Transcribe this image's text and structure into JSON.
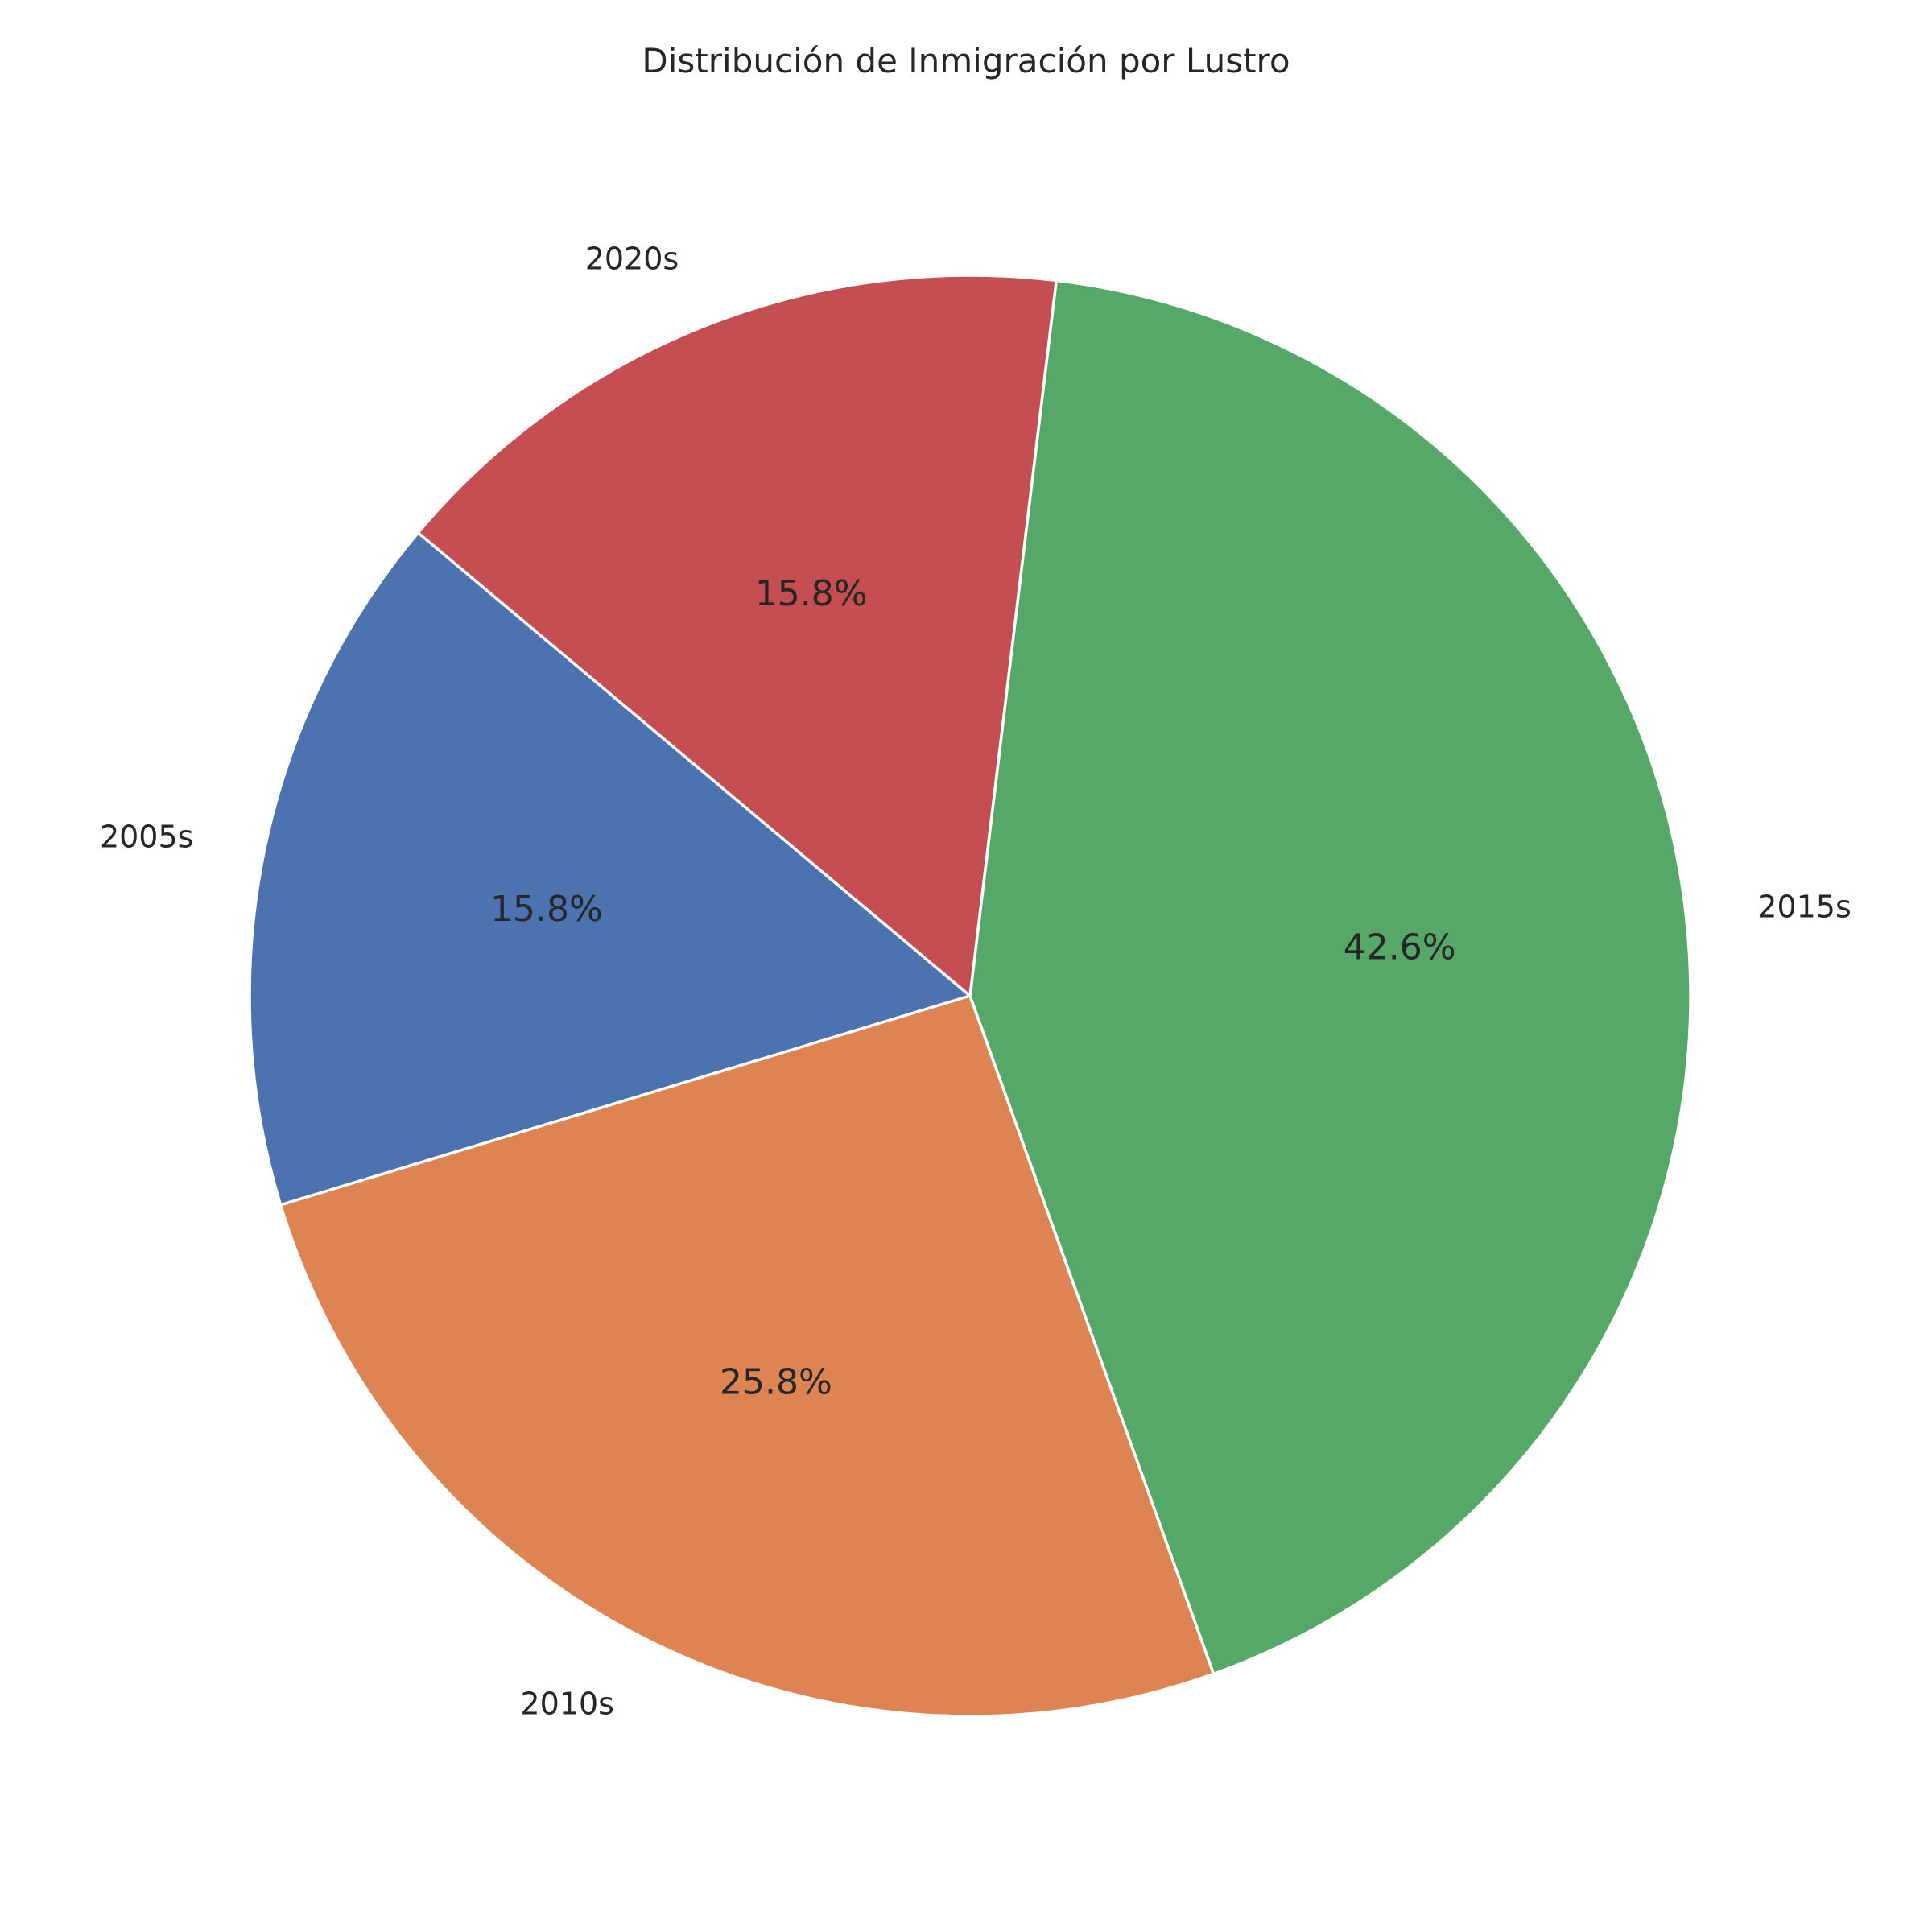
{
  "chart_data": {
    "type": "pie",
    "title": "Distribución de Inmigración por Lustro",
    "categories": [
      "2005s",
      "2010s",
      "2015s",
      "2020s"
    ],
    "values": [
      15.8,
      25.8,
      42.6,
      15.8
    ],
    "value_labels": [
      "15.8%",
      "25.8%",
      "42.6%",
      "15.8%"
    ],
    "colors": [
      "#4c72b0",
      "#dd8452",
      "#55a868",
      "#c44e52"
    ],
    "start_angle_deg": 140,
    "direction": "counterclockwise",
    "legend": "none"
  }
}
